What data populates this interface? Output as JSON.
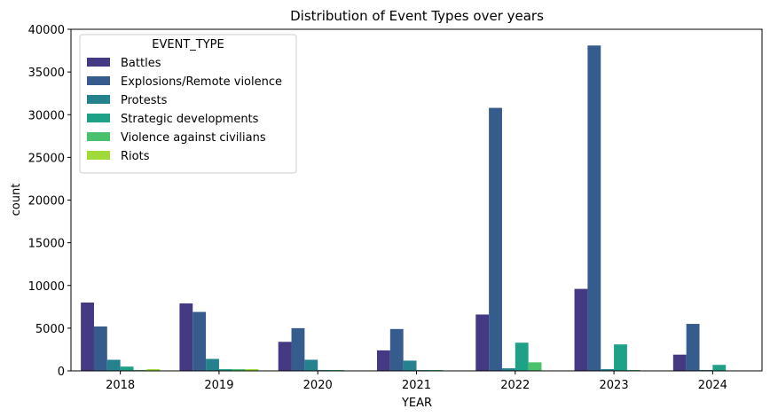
{
  "chart_data": {
    "type": "bar",
    "title": "Distribution of Event Types over years",
    "xlabel": "YEAR",
    "ylabel": "count",
    "categories": [
      "2018",
      "2019",
      "2020",
      "2021",
      "2022",
      "2023",
      "2024"
    ],
    "ylim": [
      0,
      40000
    ],
    "yticks": [
      0,
      5000,
      10000,
      15000,
      20000,
      25000,
      30000,
      35000,
      40000
    ],
    "grid": false,
    "legend": {
      "title": "EVENT_TYPE",
      "placement": "top-left"
    },
    "series": [
      {
        "name": "Battles",
        "color": "#443983",
        "values": [
          8000,
          7900,
          3400,
          2400,
          6600,
          9600,
          1900
        ]
      },
      {
        "name": "Explosions/Remote violence",
        "color": "#365c8d",
        "values": [
          5200,
          6900,
          5000,
          4900,
          30800,
          38100,
          5500
        ]
      },
      {
        "name": "Protests",
        "color": "#26818e",
        "values": [
          1300,
          1400,
          1300,
          1200,
          300,
          200,
          100
        ]
      },
      {
        "name": "Strategic developments",
        "color": "#1fa187",
        "values": [
          500,
          200,
          100,
          100,
          3300,
          3100,
          700
        ]
      },
      {
        "name": "Violence against civilians",
        "color": "#4ac16d",
        "values": [
          100,
          200,
          100,
          100,
          1000,
          100,
          0
        ]
      },
      {
        "name": "Riots",
        "color": "#a0da39",
        "values": [
          200,
          200,
          50,
          50,
          0,
          0,
          0
        ]
      }
    ]
  }
}
